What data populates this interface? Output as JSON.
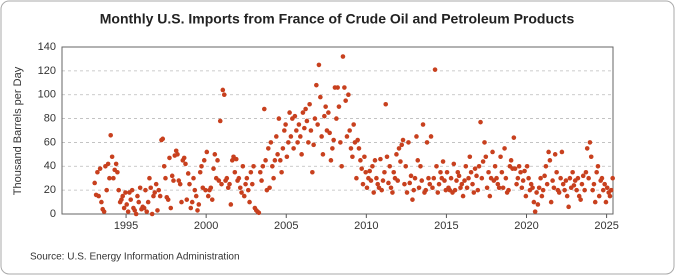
{
  "chart_data": {
    "type": "scatter",
    "title": "Monthly U.S. Imports from France of Crude Oil and Petroleum Products",
    "y_label": "Thousand Barrels per Day",
    "source": "Source: U.S. Energy Information Administration",
    "xlim": [
      1991,
      2025.4
    ],
    "xticks": [
      1995,
      2000,
      2005,
      2010,
      2015,
      2020,
      2025
    ],
    "ylim": [
      0,
      140
    ],
    "yticks": [
      0,
      20,
      40,
      60,
      80,
      100,
      120,
      140
    ],
    "grid": true,
    "series": [
      {
        "color": "#c8401e",
        "x": [
          1993.04,
          1993.13,
          1993.21,
          1993.29,
          1993.38,
          1993.46,
          1993.54,
          1993.63,
          1993.71,
          1993.79,
          1993.88,
          1993.96,
          1994.04,
          1994.13,
          1994.21,
          1994.29,
          1994.38,
          1994.46,
          1994.54,
          1994.63,
          1994.71,
          1994.79,
          1994.88,
          1994.96,
          1995.04,
          1995.13,
          1995.21,
          1995.29,
          1995.38,
          1995.46,
          1995.54,
          1995.63,
          1995.71,
          1995.79,
          1995.88,
          1995.96,
          1996.04,
          1996.13,
          1996.21,
          1996.29,
          1996.38,
          1996.46,
          1996.54,
          1996.63,
          1996.71,
          1996.79,
          1996.88,
          1996.96,
          1997.04,
          1997.13,
          1997.21,
          1997.29,
          1997.38,
          1997.46,
          1997.54,
          1997.63,
          1997.71,
          1997.79,
          1997.88,
          1997.96,
          1998.04,
          1998.13,
          1998.21,
          1998.29,
          1998.38,
          1998.46,
          1998.54,
          1998.63,
          1998.71,
          1998.79,
          1998.88,
          1998.96,
          1999.04,
          1999.13,
          1999.21,
          1999.29,
          1999.38,
          1999.46,
          1999.54,
          1999.63,
          1999.71,
          1999.79,
          1999.88,
          1999.96,
          2000.04,
          2000.13,
          2000.21,
          2000.29,
          2000.38,
          2000.46,
          2000.54,
          2000.63,
          2000.71,
          2000.79,
          2000.88,
          2000.96,
          2001.04,
          2001.13,
          2001.21,
          2001.29,
          2001.38,
          2001.46,
          2001.54,
          2001.63,
          2001.71,
          2001.79,
          2001.88,
          2001.96,
          2002.04,
          2002.13,
          2002.21,
          2002.29,
          2002.38,
          2002.46,
          2002.54,
          2002.63,
          2002.71,
          2002.79,
          2002.88,
          2002.96,
          2003.04,
          2003.13,
          2003.21,
          2003.29,
          2003.38,
          2003.46,
          2003.54,
          2003.63,
          2003.71,
          2003.79,
          2003.88,
          2003.96,
          2004.04,
          2004.13,
          2004.21,
          2004.29,
          2004.38,
          2004.46,
          2004.54,
          2004.63,
          2004.71,
          2004.79,
          2004.88,
          2004.96,
          2005.04,
          2005.13,
          2005.21,
          2005.29,
          2005.38,
          2005.46,
          2005.54,
          2005.63,
          2005.71,
          2005.79,
          2005.88,
          2005.96,
          2006.04,
          2006.13,
          2006.21,
          2006.29,
          2006.38,
          2006.46,
          2006.54,
          2006.63,
          2006.71,
          2006.79,
          2006.88,
          2006.96,
          2007.04,
          2007.13,
          2007.21,
          2007.29,
          2007.38,
          2007.46,
          2007.54,
          2007.63,
          2007.71,
          2007.79,
          2007.88,
          2007.96,
          2008.04,
          2008.13,
          2008.21,
          2008.29,
          2008.38,
          2008.46,
          2008.54,
          2008.63,
          2008.71,
          2008.79,
          2008.88,
          2008.96,
          2009.04,
          2009.13,
          2009.21,
          2009.29,
          2009.38,
          2009.46,
          2009.54,
          2009.63,
          2009.71,
          2009.79,
          2009.88,
          2009.96,
          2010.04,
          2010.13,
          2010.21,
          2010.29,
          2010.38,
          2010.46,
          2010.54,
          2010.63,
          2010.71,
          2010.79,
          2010.88,
          2010.96,
          2011.04,
          2011.13,
          2011.21,
          2011.29,
          2011.38,
          2011.46,
          2011.54,
          2011.63,
          2011.71,
          2011.79,
          2011.88,
          2011.96,
          2012.04,
          2012.13,
          2012.21,
          2012.29,
          2012.38,
          2012.46,
          2012.54,
          2012.63,
          2012.71,
          2012.79,
          2012.88,
          2012.96,
          2013.04,
          2013.13,
          2013.21,
          2013.29,
          2013.38,
          2013.46,
          2013.54,
          2013.63,
          2013.71,
          2013.79,
          2013.88,
          2013.96,
          2014.04,
          2014.13,
          2014.21,
          2014.29,
          2014.38,
          2014.46,
          2014.54,
          2014.63,
          2014.71,
          2014.79,
          2014.88,
          2014.96,
          2015.04,
          2015.13,
          2015.21,
          2015.29,
          2015.38,
          2015.46,
          2015.54,
          2015.63,
          2015.71,
          2015.79,
          2015.88,
          2015.96,
          2016.04,
          2016.13,
          2016.21,
          2016.29,
          2016.38,
          2016.46,
          2016.54,
          2016.63,
          2016.71,
          2016.79,
          2016.88,
          2016.96,
          2017.04,
          2017.13,
          2017.21,
          2017.29,
          2017.38,
          2017.46,
          2017.54,
          2017.63,
          2017.71,
          2017.79,
          2017.88,
          2017.96,
          2018.04,
          2018.13,
          2018.21,
          2018.29,
          2018.38,
          2018.46,
          2018.54,
          2018.63,
          2018.71,
          2018.79,
          2018.88,
          2018.96,
          2019.04,
          2019.13,
          2019.21,
          2019.29,
          2019.38,
          2019.46,
          2019.54,
          2019.63,
          2019.71,
          2019.79,
          2019.88,
          2019.96,
          2020.04,
          2020.13,
          2020.21,
          2020.29,
          2020.38,
          2020.46,
          2020.54,
          2020.63,
          2020.71,
          2020.79,
          2020.88,
          2020.96,
          2021.04,
          2021.13,
          2021.21,
          2021.29,
          2021.38,
          2021.46,
          2021.54,
          2021.63,
          2021.71,
          2021.79,
          2021.88,
          2021.96,
          2022.04,
          2022.13,
          2022.21,
          2022.29,
          2022.38,
          2022.46,
          2022.54,
          2022.63,
          2022.71,
          2022.79,
          2022.88,
          2022.96,
          2023.04,
          2023.13,
          2023.21,
          2023.29,
          2023.38,
          2023.46,
          2023.54,
          2023.63,
          2023.71,
          2023.79,
          2023.88,
          2023.96,
          2024.04,
          2024.13,
          2024.21,
          2024.29,
          2024.38,
          2024.46,
          2024.54,
          2024.63,
          2024.71,
          2024.79,
          2024.88,
          2024.96,
          2025.04,
          2025.13,
          2025.21,
          2025.29,
          2025.38
        ],
        "values": [
          26,
          16,
          35,
          15,
          38,
          10,
          4,
          2,
          40,
          20,
          42,
          30,
          66,
          48,
          30,
          37,
          42,
          35,
          20,
          10,
          12,
          15,
          5,
          18,
          8,
          2,
          18,
          12,
          20,
          5,
          3,
          0,
          15,
          10,
          22,
          4,
          6,
          5,
          20,
          2,
          10,
          30,
          22,
          0,
          15,
          18,
          25,
          3,
          20,
          15,
          62,
          63,
          40,
          30,
          14,
          12,
          47,
          5,
          32,
          28,
          49,
          53,
          50,
          28,
          25,
          10,
          45,
          47,
          42,
          12,
          34,
          25,
          5,
          10,
          30,
          20,
          15,
          3,
          8,
          35,
          40,
          22,
          45,
          20,
          52,
          15,
          20,
          22,
          12,
          38,
          50,
          30,
          45,
          28,
          78,
          25,
          104,
          100,
          28,
          30,
          22,
          25,
          8,
          45,
          48,
          35,
          46,
          28,
          30,
          22,
          18,
          40,
          15,
          25,
          30,
          20,
          10,
          35,
          25,
          40,
          5,
          3,
          2,
          1,
          35,
          28,
          40,
          88,
          45,
          20,
          55,
          22,
          60,
          40,
          30,
          45,
          65,
          50,
          80,
          45,
          35,
          55,
          70,
          75,
          48,
          60,
          85,
          65,
          80,
          55,
          82,
          70,
          60,
          75,
          65,
          50,
          85,
          72,
          88,
          78,
          60,
          92,
          70,
          35,
          58,
          80,
          108,
          75,
          125,
          98,
          65,
          50,
          82,
          90,
          70,
          85,
          68,
          45,
          55,
          62,
          106,
          80,
          106,
          90,
          60,
          40,
          132,
          106,
          95,
          65,
          100,
          70,
          55,
          48,
          75,
          60,
          30,
          62,
          55,
          45,
          38,
          25,
          48,
          35,
          22,
          30,
          36,
          28,
          40,
          18,
          45,
          30,
          25,
          22,
          46,
          20,
          28,
          35,
          92,
          48,
          26,
          40,
          22,
          18,
          35,
          30,
          50,
          28,
          55,
          44,
          58,
          62,
          25,
          40,
          18,
          60,
          26,
          32,
          12,
          20,
          30,
          65,
          45,
          22,
          40,
          28,
          75,
          18,
          20,
          60,
          30,
          25,
          65,
          22,
          30,
          121,
          40,
          18,
          25,
          35,
          30,
          44,
          28,
          20,
          35,
          22,
          20,
          30,
          18,
          42,
          20,
          28,
          35,
          32,
          22,
          25,
          15,
          28,
          40,
          22,
          30,
          48,
          35,
          25,
          18,
          38,
          32,
          20,
          40,
          77,
          30,
          44,
          60,
          48,
          22,
          35,
          15,
          30,
          52,
          28,
          40,
          30,
          25,
          22,
          48,
          35,
          22,
          55,
          30,
          18,
          20,
          40,
          45,
          38,
          64,
          38,
          25,
          30,
          40,
          35,
          22,
          28,
          36,
          15,
          40,
          30,
          20,
          25,
          22,
          10,
          2,
          18,
          8,
          22,
          30,
          15,
          20,
          32,
          40,
          25,
          52,
          45,
          10,
          28,
          22,
          50,
          35,
          20,
          18,
          30,
          52,
          25,
          20,
          28,
          15,
          6,
          30,
          22,
          35,
          24,
          28,
          20,
          30,
          15,
          12,
          25,
          32,
          20,
          35,
          55,
          30,
          60,
          48,
          20,
          25,
          10,
          35,
          40,
          15,
          28,
          30,
          20,
          25,
          10,
          22,
          18,
          15,
          20,
          30
        ]
      }
    ]
  }
}
